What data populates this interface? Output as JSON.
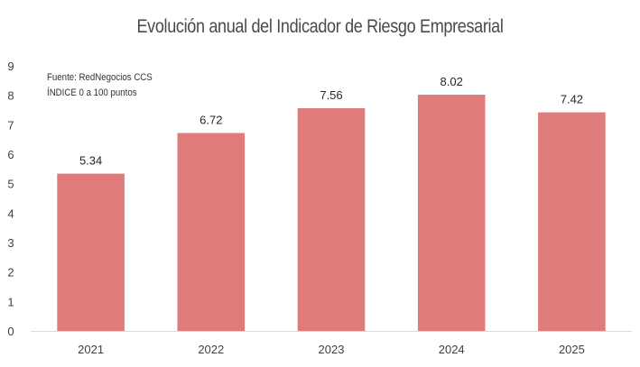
{
  "chart_data": {
    "type": "bar",
    "title": "Evolución anual del Indicador de Riesgo Empresarial",
    "notes": [
      "Fuente: RedNegocios CCS",
      "ÍNDICE 0 a 100  puntos"
    ],
    "categories": [
      "2021",
      "2022",
      "2023",
      "2024",
      "2025"
    ],
    "values": [
      5.34,
      6.72,
      7.56,
      8.02,
      7.42
    ],
    "value_labels": [
      "5.34",
      "6.72",
      "7.56",
      "8.02",
      "7.42"
    ],
    "ylim": [
      0,
      9
    ],
    "yticks": [
      0,
      1,
      2,
      3,
      4,
      5,
      6,
      7,
      8,
      9
    ],
    "xlabel": "",
    "ylabel": "",
    "grid": false,
    "bar_color": "#e07b7b",
    "axis_color": "#d9d9d9"
  }
}
